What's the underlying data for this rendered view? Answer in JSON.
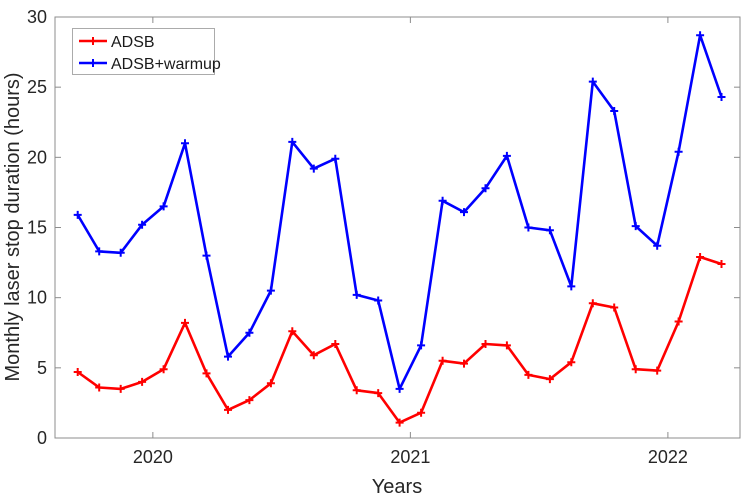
{
  "chart_data": {
    "type": "line",
    "title": "",
    "xlabel": "Years",
    "ylabel": "Monthly laser stop duration (hours)",
    "xlim": [
      2019.62,
      2022.28
    ],
    "ylim": [
      0,
      30
    ],
    "x_ticks": [
      2020,
      2021,
      2022
    ],
    "x_tick_labels": [
      "2020",
      "2021",
      "2022"
    ],
    "y_ticks": [
      0,
      5,
      10,
      15,
      20,
      25,
      30
    ],
    "y_tick_labels": [
      "0",
      "5",
      "10",
      "15",
      "20",
      "25",
      "30"
    ],
    "grid": false,
    "box": true,
    "tick_direction": "in",
    "legend_position": "top-left",
    "months": [
      "2019-09",
      "2019-10",
      "2019-11",
      "2019-12",
      "2020-01",
      "2020-02",
      "2020-03",
      "2020-04",
      "2020-05",
      "2020-06",
      "2020-07",
      "2020-08",
      "2020-09",
      "2020-10",
      "2020-11",
      "2020-12",
      "2021-01",
      "2021-02",
      "2021-03",
      "2021-04",
      "2021-05",
      "2021-06",
      "2021-07",
      "2021-08",
      "2021-09",
      "2021-10",
      "2021-11",
      "2021-12",
      "2022-01",
      "2022-02",
      "2022-03"
    ],
    "series": [
      {
        "name": "ADSB",
        "color": "#ff0000",
        "marker": "plus",
        "values": [
          4.7,
          3.6,
          3.5,
          4.0,
          4.9,
          8.2,
          4.6,
          2.0,
          2.7,
          3.9,
          7.6,
          5.9,
          6.7,
          3.4,
          3.2,
          1.1,
          1.8,
          5.5,
          5.3,
          6.7,
          6.6,
          4.5,
          4.2,
          5.4,
          9.6,
          9.3,
          4.9,
          4.8,
          8.3,
          12.9,
          12.4
        ]
      },
      {
        "name": "ADSB+warmup",
        "color": "#0000ff",
        "marker": "plus",
        "values": [
          15.9,
          13.3,
          13.2,
          15.2,
          16.5,
          21.0,
          13.0,
          5.8,
          7.5,
          10.5,
          21.1,
          19.2,
          19.9,
          10.2,
          9.8,
          3.5,
          6.6,
          16.9,
          16.1,
          17.8,
          20.1,
          15.0,
          14.8,
          10.8,
          25.4,
          23.3,
          15.1,
          13.7,
          20.4,
          28.7,
          24.3
        ]
      }
    ],
    "styles": {
      "axis_color": "#8c8c8c",
      "text_color": "#262626",
      "legend_border_color": "#ababab",
      "background_color": "#ffffff"
    }
  }
}
